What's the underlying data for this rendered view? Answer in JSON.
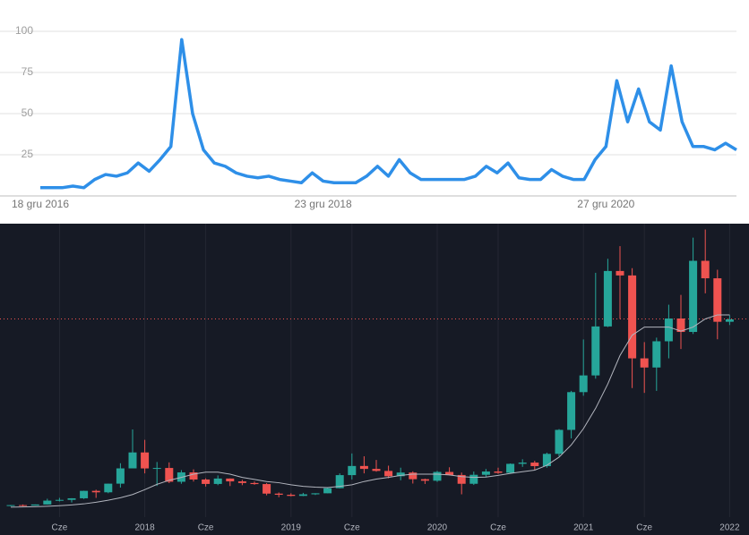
{
  "chart_data": [
    {
      "type": "line",
      "color": "#2e8fe8",
      "grid": true,
      "ylim": [
        0,
        100
      ],
      "yticks": [
        25,
        50,
        75,
        100
      ],
      "categories": [
        "18 gru 2016",
        null,
        null,
        null,
        null,
        null,
        null,
        null,
        null,
        null,
        null,
        null,
        null,
        null,
        null,
        null,
        null,
        null,
        null,
        null,
        null,
        null,
        null,
        null,
        null,
        null,
        "23 gru 2018",
        null,
        null,
        null,
        null,
        null,
        null,
        null,
        null,
        null,
        null,
        null,
        null,
        null,
        null,
        null,
        null,
        null,
        null,
        null,
        null,
        null,
        null,
        null,
        null,
        null,
        "27 gru 2020",
        null,
        null,
        null,
        null,
        null,
        null,
        null,
        null,
        null,
        null,
        null,
        null
      ],
      "values": [
        5,
        5,
        5,
        6,
        5,
        10,
        13,
        12,
        14,
        20,
        15,
        22,
        30,
        95,
        50,
        28,
        20,
        18,
        14,
        12,
        11,
        12,
        10,
        9,
        8,
        14,
        9,
        8,
        8,
        8,
        12,
        18,
        12,
        22,
        14,
        10,
        10,
        10,
        10,
        10,
        12,
        18,
        14,
        20,
        11,
        10,
        10,
        16,
        12,
        10,
        10,
        22,
        30,
        70,
        45,
        65,
        45,
        40,
        79,
        45,
        30,
        30,
        28,
        32,
        28
      ]
    },
    {
      "type": "candlestick",
      "up_color": "#26a69a",
      "down_color": "#ef5350",
      "ma_color": "#b2b5be",
      "price_line_color": "#ef5350",
      "ylim": [
        0,
        70000
      ],
      "categories": [
        null,
        null,
        null,
        null,
        "Cze",
        null,
        null,
        null,
        null,
        null,
        null,
        "2018",
        null,
        null,
        null,
        null,
        "Cze",
        null,
        null,
        null,
        null,
        null,
        null,
        "2019",
        null,
        null,
        null,
        null,
        "Cze",
        null,
        null,
        null,
        null,
        null,
        null,
        "2020",
        null,
        null,
        null,
        null,
        "Cze",
        null,
        null,
        null,
        null,
        null,
        null,
        "2021",
        null,
        null,
        null,
        null,
        "Cze",
        null,
        null,
        null,
        null,
        null,
        null,
        "2022"
      ],
      "open": [
        970,
        1190,
        1080,
        1350,
        2300,
        2480,
        2870,
        4700,
        4340,
        6470,
        10230,
        14150,
        10220,
        10330,
        6940,
        9240,
        7490,
        6400,
        7730,
        7030,
        6630,
        6370,
        4020,
        3740,
        3460,
        3850,
        4100,
        5350,
        8570,
        10820,
        10100,
        9600,
        8300,
        9200,
        7570,
        7190,
        9350,
        8600,
        6440,
        8650,
        9460,
        9140,
        11350,
        11650,
        10780,
        13800,
        19700,
        28990,
        33100,
        45150,
        58800,
        57700,
        37300,
        35050,
        41500,
        47100,
        43800,
        61300,
        57000,
        46300
      ],
      "high": [
        1200,
        1350,
        1350,
        2760,
        2980,
        2900,
        4740,
        4980,
        6470,
        11500,
        19800,
        17250,
        11800,
        11700,
        9800,
        10000,
        7780,
        8500,
        7760,
        7400,
        7000,
        6600,
        4300,
        4100,
        4200,
        4100,
        5600,
        9000,
        13900,
        13200,
        12300,
        10900,
        10400,
        9500,
        7700,
        9600,
        10500,
        9200,
        9450,
        10080,
        10400,
        11450,
        12470,
        12100,
        14100,
        19900,
        29300,
        41950,
        58350,
        61800,
        64900,
        59500,
        41300,
        42400,
        50500,
        52900,
        67000,
        69000,
        59100,
        47900
      ],
      "low": [
        920,
        890,
        1080,
        1350,
        2100,
        1840,
        2700,
        2970,
        4110,
        5500,
        10700,
        9000,
        5900,
        6600,
        6440,
        7000,
        5760,
        6100,
        5880,
        6100,
        6200,
        3600,
        3130,
        3350,
        3400,
        3700,
        4100,
        5300,
        7500,
        9000,
        9400,
        7800,
        7300,
        6500,
        6400,
        6900,
        8500,
        3850,
        6150,
        8100,
        8900,
        8950,
        10600,
        9900,
        10400,
        13200,
        17600,
        28100,
        32300,
        45000,
        47000,
        30000,
        28800,
        29300,
        37300,
        39600,
        43300,
        53300,
        42000,
        45500
      ],
      "close": [
        1190,
        1080,
        1350,
        2300,
        2480,
        2870,
        4700,
        4340,
        6470,
        10230,
        14150,
        10220,
        10330,
        6940,
        9240,
        7490,
        6400,
        7730,
        7030,
        6630,
        6370,
        4020,
        3740,
        3460,
        3850,
        4100,
        5350,
        8570,
        10820,
        10100,
        9600,
        8300,
        9200,
        7570,
        7190,
        9350,
        8600,
        6440,
        8650,
        9460,
        9140,
        11350,
        11650,
        10780,
        13800,
        19700,
        28990,
        33100,
        45150,
        58800,
        57700,
        37300,
        35050,
        41500,
        47100,
        43800,
        61300,
        57000,
        46300,
        46900
      ],
      "ma_values": [
        700,
        750,
        800,
        900,
        1050,
        1250,
        1500,
        1900,
        2400,
        3000,
        3800,
        5000,
        6300,
        7300,
        8000,
        8800,
        9300,
        9300,
        8800,
        8000,
        7500,
        7000,
        6700,
        6200,
        5800,
        5600,
        5500,
        5800,
        6200,
        7000,
        7600,
        8000,
        8500,
        8800,
        8800,
        8800,
        8600,
        8200,
        8000,
        8100,
        8500,
        9000,
        9400,
        9800,
        11000,
        13000,
        16000,
        20000,
        25000,
        31000,
        38000,
        43000,
        45000,
        45000,
        45000,
        44000,
        45000,
        47000,
        48000,
        48000
      ],
      "price_line": 47000
    }
  ]
}
